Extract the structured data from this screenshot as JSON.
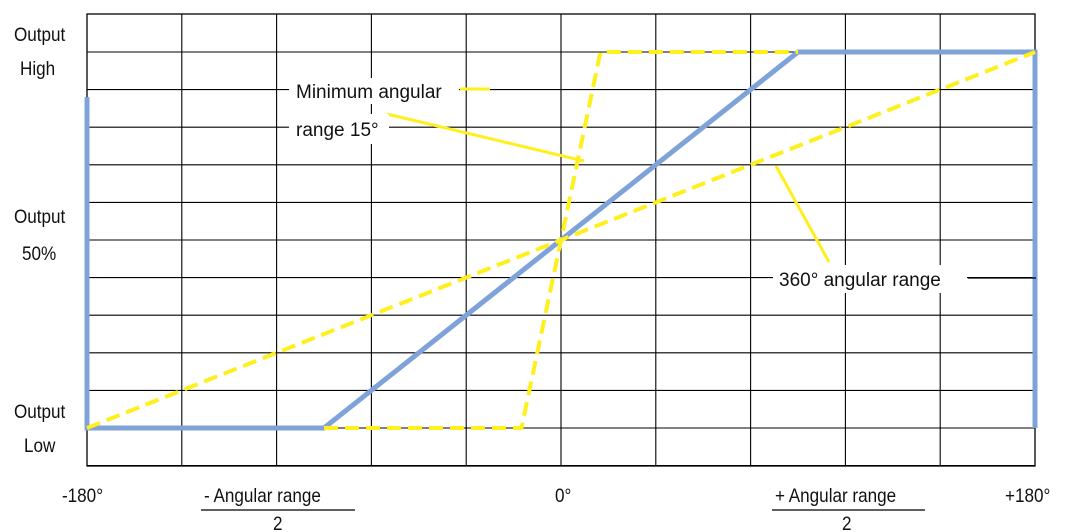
{
  "chart_data": {
    "type": "line",
    "title": "",
    "xlabel": "",
    "ylabel": "",
    "grid": true,
    "colors": {
      "blue": "#7fa3d9",
      "yellow": "#ffef1c",
      "grid": "#000000"
    },
    "y_labels": {
      "high": [
        "Output",
        "High"
      ],
      "mid": [
        "Output",
        "50%"
      ],
      "low": [
        "Output",
        "Low"
      ]
    },
    "x_labels": {
      "left": "-180°",
      "neg_range_num": "- Angular range",
      "neg_range_den": "2",
      "zero": "0°",
      "pos_range_num": "+ Angular range",
      "pos_range_den": "2",
      "right": "+180°"
    },
    "annotations": {
      "min_line1": "Minimum angular",
      "min_line2": "range 15°",
      "full": "360° angular range"
    },
    "series": [
      {
        "style": "solid-blue",
        "x": [
          -180,
          -180,
          -90,
          90,
          180,
          180
        ],
        "y": [
          0.88,
          0,
          0,
          1,
          1,
          0.0
        ]
      },
      {
        "style": "dashed-yellow",
        "x": [
          -90,
          -15,
          15,
          90
        ],
        "y": [
          0,
          0,
          1,
          1
        ]
      },
      {
        "style": "dashed-yellow",
        "x": [
          -180,
          180
        ],
        "y": [
          0,
          1
        ]
      }
    ]
  }
}
